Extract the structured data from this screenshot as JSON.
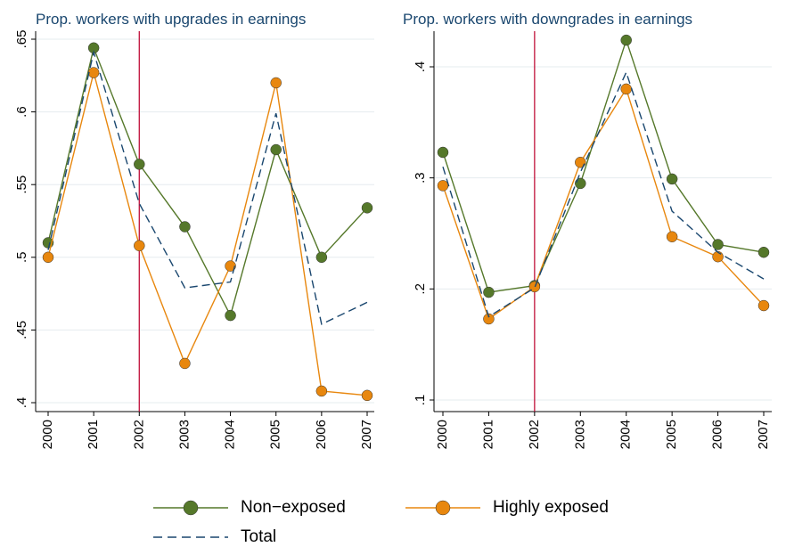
{
  "chart_data": [
    {
      "type": "line",
      "title": "Prop. workers with upgrades in earnings",
      "x": [
        2000,
        2001,
        2002,
        2003,
        2004,
        2005,
        2006,
        2007
      ],
      "xlim": [
        2000,
        2007
      ],
      "xticks": [
        2000,
        2001,
        2002,
        2003,
        2004,
        2005,
        2006,
        2007
      ],
      "ylim": [
        0.4,
        0.65
      ],
      "yticks": [
        {
          "value": 0.4,
          "label": ".4"
        },
        {
          "value": 0.45,
          "label": ".45"
        },
        {
          "value": 0.5,
          "label": ".5"
        },
        {
          "value": 0.55,
          "label": ".55"
        },
        {
          "value": 0.6,
          "label": ".6"
        },
        {
          "value": 0.65,
          "label": ".65"
        }
      ],
      "grid": true,
      "vline": 2002,
      "vline_color": "#c0103a",
      "series": [
        {
          "name": "Non−exposed",
          "color": "#55782a",
          "marker": "circle",
          "line_style": "solid",
          "values": [
            0.51,
            0.644,
            0.564,
            0.521,
            0.46,
            0.574,
            0.5,
            0.534
          ]
        },
        {
          "name": "Highly exposed",
          "color": "#e8870e",
          "marker": "circle",
          "line_style": "solid",
          "values": [
            0.5,
            0.627,
            0.508,
            0.427,
            0.494,
            0.62,
            0.408,
            0.405
          ]
        },
        {
          "name": "Total",
          "color": "#1a476f",
          "marker": "none",
          "line_style": "dashed",
          "values": [
            0.505,
            0.641,
            0.537,
            0.479,
            0.483,
            0.599,
            0.454,
            0.469
          ]
        }
      ]
    },
    {
      "type": "line",
      "title": "Prop. workers with downgrades in earnings",
      "x": [
        2000,
        2001,
        2002,
        2003,
        2004,
        2005,
        2006,
        2007
      ],
      "xlim": [
        2000,
        2007
      ],
      "xticks": [
        2000,
        2001,
        2002,
        2003,
        2004,
        2005,
        2006,
        2007
      ],
      "ylim": [
        0.1,
        0.4
      ],
      "yticks": [
        {
          "value": 0.1,
          "label": ".1"
        },
        {
          "value": 0.2,
          "label": ".2"
        },
        {
          "value": 0.3,
          "label": ".3"
        },
        {
          "value": 0.4,
          "label": ".4"
        }
      ],
      "grid": true,
      "vline": 2002,
      "vline_color": "#c0103a",
      "series": [
        {
          "name": "Non−exposed",
          "color": "#55782a",
          "marker": "circle",
          "line_style": "solid",
          "values": [
            0.323,
            0.197,
            0.203,
            0.295,
            0.424,
            0.299,
            0.24,
            0.233
          ]
        },
        {
          "name": "Highly exposed",
          "color": "#e8870e",
          "marker": "circle",
          "line_style": "solid",
          "values": [
            0.293,
            0.173,
            0.202,
            0.314,
            0.38,
            0.247,
            0.229,
            0.185
          ]
        },
        {
          "name": "Total",
          "color": "#1a476f",
          "marker": "none",
          "line_style": "dashed",
          "values": [
            0.31,
            0.175,
            0.201,
            0.305,
            0.395,
            0.27,
            0.233,
            0.209
          ]
        }
      ]
    }
  ]
}
